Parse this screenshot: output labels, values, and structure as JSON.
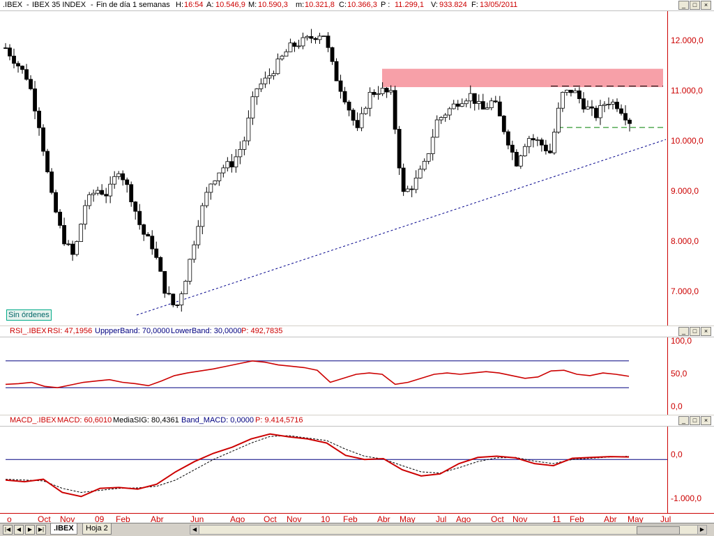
{
  "main_header": {
    "symbol": ".IBEX",
    "name": "IBEX 35 INDEX",
    "period": "Fin de día 1 semanas",
    "H": {
      "label": "H:",
      "value": "16:54"
    },
    "A": {
      "label": "A:",
      "value": "10.546,9"
    },
    "M": {
      "label": "M:",
      "value": "10.590,3"
    },
    "m": {
      "label": "m:",
      "value": "10.321,8"
    },
    "C": {
      "label": "C:",
      "value": "10.366,3"
    },
    "P": {
      "label": "P :",
      "value": "11.299,1"
    },
    "V": {
      "label": "V:",
      "value": "933.824"
    },
    "F": {
      "label": "F:",
      "value": "13/05/2011"
    }
  },
  "window_buttons": [
    "_",
    "□",
    "×"
  ],
  "rsi_header": {
    "name": "RSI_.IBEX",
    "rsi": "RSI: 47,1956",
    "upper": "UppperBand: 70,0000",
    "lower": "LowerBand: 30,0000",
    "p": "P: 492,7835"
  },
  "macd_header": {
    "name": "MACD_.IBEX",
    "macd": "MACD: 60,6010",
    "sig": "MediaSIG: 80,4361",
    "band": "Band_MACD: 0,0000",
    "p": "P: 9.414,5716"
  },
  "badge": "Sin órdenes",
  "colors": {
    "accent": "#cc0000",
    "blue": "#000080",
    "zone": "#f7a0a8",
    "green": "#008000"
  },
  "tabs": {
    "active": ".IBEX",
    "other": "Hoja 2"
  },
  "chart_data": [
    {
      "type": "candlestick",
      "ylim": [
        6500,
        12500
      ],
      "yticks": [
        "7.000,0",
        "8.000,0",
        "9.000,0",
        "10.000,0",
        "11.000,0",
        "12.000,0"
      ],
      "x_tick_labels": [
        "o",
        "Oct",
        "Nov",
        "09",
        "Feb",
        "Abr",
        "Jun",
        "Ago",
        "Oct",
        "Nov",
        "10",
        "Feb",
        "Abr",
        "May",
        "Jul",
        "Ago",
        "Oct",
        "Nov",
        "11",
        "Feb",
        "Abr",
        "May",
        "Jul"
      ],
      "resistance_zone": [
        11050,
        11400
      ],
      "resistance_level": 11070,
      "support_level": 10280,
      "trendline": [
        6700,
        10050
      ],
      "close_path": [
        11800,
        11500,
        11200,
        10300,
        9000,
        8200,
        7800,
        8800,
        9100,
        9000,
        9500,
        9000,
        8300,
        8000,
        7200,
        6800,
        7500,
        8500,
        9200,
        9500,
        9600,
        10000,
        11000,
        11200,
        11500,
        11800,
        11900,
        12000,
        12100,
        11300,
        10800,
        10200,
        10900,
        11000,
        10900,
        9000,
        9200,
        9600,
        10400,
        10600,
        10800,
        10900,
        10600,
        10800,
        10200,
        9600,
        10100,
        10000,
        9800,
        10900,
        11000,
        10700,
        10500,
        10800,
        10700,
        10400
      ]
    },
    {
      "type": "line",
      "name": "RSI",
      "ylim": [
        0,
        100
      ],
      "yticks": [
        "0,0",
        "50,0",
        "100,0"
      ],
      "upper_band": 70,
      "lower_band": 30,
      "values": [
        35,
        36,
        38,
        32,
        30,
        34,
        38,
        40,
        42,
        38,
        36,
        33,
        40,
        48,
        52,
        55,
        58,
        62,
        66,
        70,
        68,
        64,
        62,
        60,
        56,
        38,
        44,
        50,
        52,
        50,
        35,
        38,
        44,
        50,
        52,
        50,
        52,
        54,
        52,
        48,
        44,
        46,
        55,
        56,
        50,
        48,
        52,
        50,
        47
      ]
    },
    {
      "type": "line",
      "name": "MACD",
      "ylim": [
        -1300,
        800
      ],
      "yticks": [
        "-1.000,0",
        "0,0"
      ],
      "macd": [
        -500,
        -540,
        -480,
        -800,
        -900,
        -700,
        -680,
        -720,
        -600,
        -300,
        -50,
        150,
        300,
        500,
        620,
        550,
        500,
        400,
        100,
        0,
        20,
        -250,
        -400,
        -350,
        -100,
        50,
        80,
        40,
        -100,
        -150,
        30,
        50,
        70,
        61
      ],
      "signal": [
        -480,
        -500,
        -520,
        -700,
        -800,
        -750,
        -700,
        -690,
        -650,
        -500,
        -250,
        0,
        200,
        400,
        560,
        580,
        520,
        460,
        250,
        80,
        10,
        -150,
        -300,
        -330,
        -200,
        -50,
        40,
        50,
        -40,
        -100,
        0,
        30,
        60,
        80
      ]
    }
  ]
}
